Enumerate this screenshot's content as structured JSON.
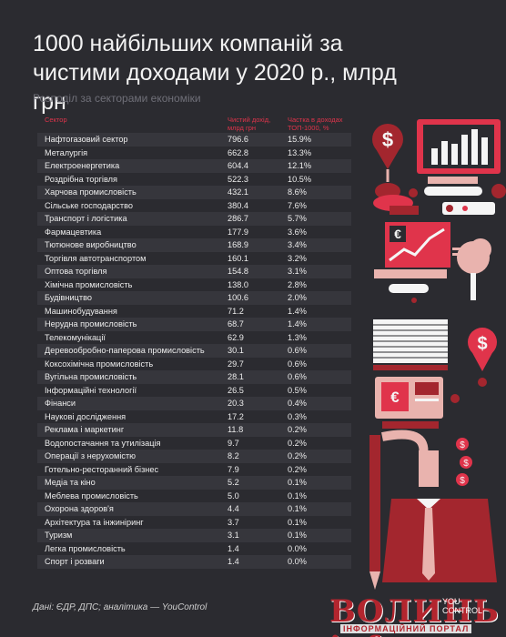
{
  "title": "1000 найбільших компаній за чистими доходами у 2020 р., млрд грн",
  "subtitle": "Розподіл за секторами економіки",
  "table": {
    "headers": [
      "Сектор",
      "Чистий дохід, млрд грн",
      "Частка в доходах ТОП-1000, %"
    ],
    "rows": [
      [
        "Нафтогазовий сектор",
        "796.6",
        "15.9%"
      ],
      [
        "Металургія",
        "662.8",
        "13.3%"
      ],
      [
        "Електроенергетика",
        "604.4",
        "12.1%"
      ],
      [
        "Роздрібна торгівля",
        "522.3",
        "10.5%"
      ],
      [
        "Харчова промисловість",
        "432.1",
        "8.6%"
      ],
      [
        "Сільське господарство",
        "380.4",
        "7.6%"
      ],
      [
        "Транспорт і логістика",
        "286.7",
        "5.7%"
      ],
      [
        "Фармацевтика",
        "177.9",
        "3.6%"
      ],
      [
        "Тютюнове виробництво",
        "168.9",
        "3.4%"
      ],
      [
        "Торгівля автотранспортом",
        "160.1",
        "3.2%"
      ],
      [
        "Оптова торгівля",
        "154.8",
        "3.1%"
      ],
      [
        "Хімічна промисловість",
        "138.0",
        "2.8%"
      ],
      [
        "Будівництво",
        "100.6",
        "2.0%"
      ],
      [
        "Машинобудування",
        "71.2",
        "1.4%"
      ],
      [
        "Нерудна промисловість",
        "68.7",
        "1.4%"
      ],
      [
        "Телекомунікації",
        "62.9",
        "1.3%"
      ],
      [
        "Деревообробно-паперова промисловість",
        "30.1",
        "0.6%"
      ],
      [
        "Коксохімічна промисловість",
        "29.7",
        "0.6%"
      ],
      [
        "Вугільна промисловість",
        "28.1",
        "0.6%"
      ],
      [
        "Інформаційні технології",
        "26.5",
        "0.5%"
      ],
      [
        "Фінанси",
        "20.3",
        "0.4%"
      ],
      [
        "Наукові дослідження",
        "17.2",
        "0.3%"
      ],
      [
        "Реклама і маркетинг",
        "11.8",
        "0.2%"
      ],
      [
        "Водопостачання та утилізація",
        "9.7",
        "0.2%"
      ],
      [
        "Операції з нерухомістю",
        "8.2",
        "0.2%"
      ],
      [
        "Готельно-ресторанний бізнес",
        "7.9",
        "0.2%"
      ],
      [
        "Медіа та кіно",
        "5.2",
        "0.1%"
      ],
      [
        "Меблева промисловість",
        "5.0",
        "0.1%"
      ],
      [
        "Охорона здоров'я",
        "4.4",
        "0.1%"
      ],
      [
        "Архітектура та інжиніринг",
        "3.7",
        "0.1%"
      ],
      [
        "Туризм",
        "3.1",
        "0.1%"
      ],
      [
        "Легка промисловість",
        "1.4",
        "0.0%"
      ],
      [
        "Спорт і розваги",
        "1.4",
        "0.0%"
      ]
    ]
  },
  "source": "Дані: ЄДР, ДПС; аналітика — YouControl",
  "watermark": {
    "brand": "ВОЛИНЬ info",
    "tagline": "ІНФОРМАЦІЙНИЙ ПОРТАЛ",
    "partner_top": "YOU",
    "partner_bottom": "CONTROL"
  },
  "colors": {
    "background": "#2b2b30",
    "accent": "#e0344b",
    "dark_red": "#a3262e",
    "pink": "#e9b3ae"
  },
  "icons": [
    "dollar-pin-icon",
    "bar-chart-monitor-icon",
    "euro-chart-icon",
    "tree-icon",
    "euro-atm-icon",
    "businessman-icon"
  ]
}
